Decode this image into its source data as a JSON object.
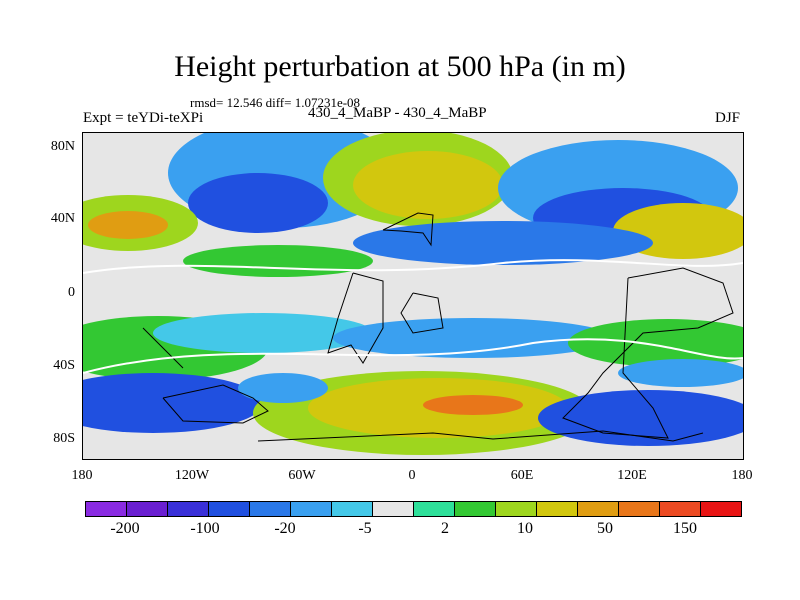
{
  "title": "Height perturbation at 500 hPa (in m)",
  "stats": "rmsd= 12.546 diff= 1.07231e-08",
  "experiment": "Expt = teYDi-teXPi",
  "run_label": "430_4_MaBP - 430_4_MaBP",
  "season": "DJF",
  "y_ticks": [
    "80N",
    "40N",
    "0",
    "40S",
    "80S"
  ],
  "x_ticks": [
    "180",
    "120W",
    "60W",
    "0",
    "60E",
    "120E",
    "180"
  ],
  "colorbar": {
    "labels": [
      "-200",
      "-100",
      "-20",
      "-5",
      "2",
      "10",
      "50",
      "150"
    ],
    "colors": [
      "#8a2be2",
      "#6a1fd1",
      "#3a30d8",
      "#2050e0",
      "#2a78e8",
      "#3aa0f0",
      "#44c8e8",
      "#e6e6e6",
      "#2ee09a",
      "#33c833",
      "#9ed61e",
      "#d2c70e",
      "#e09d12",
      "#e8761a",
      "#ec4a22",
      "#e81414"
    ]
  },
  "chart_data": {
    "type": "heatmap",
    "title": "Height perturbation at 500 hPa (in m)",
    "xlabel": "",
    "ylabel": "",
    "x_ticks": [
      "180",
      "120W",
      "60W",
      "0",
      "60E",
      "120E",
      "180"
    ],
    "y_ticks": [
      "80N",
      "40N",
      "0",
      "40S",
      "80S"
    ],
    "features": [
      {
        "lon": -130,
        "lat": 45,
        "sign": "+",
        "level": "10-50"
      },
      {
        "lon": -95,
        "lat": 55,
        "sign": "-",
        "level": "-20 to -100"
      },
      {
        "lon": 10,
        "lat": 62,
        "sign": "+",
        "level": "50"
      },
      {
        "lon": 85,
        "lat": 55,
        "sign": "-",
        "level": "-20 to -100"
      },
      {
        "lon": 145,
        "lat": 35,
        "sign": "+",
        "level": "10-50"
      },
      {
        "lon": -110,
        "lat": -40,
        "sign": "+",
        "level": "10"
      },
      {
        "lon": 20,
        "lat": -70,
        "sign": "+",
        "level": "50-150"
      },
      {
        "lon": -140,
        "lat": -70,
        "sign": "-",
        "level": "-100"
      },
      {
        "lon": 140,
        "lat": -72,
        "sign": "-",
        "level": "-100"
      }
    ]
  }
}
